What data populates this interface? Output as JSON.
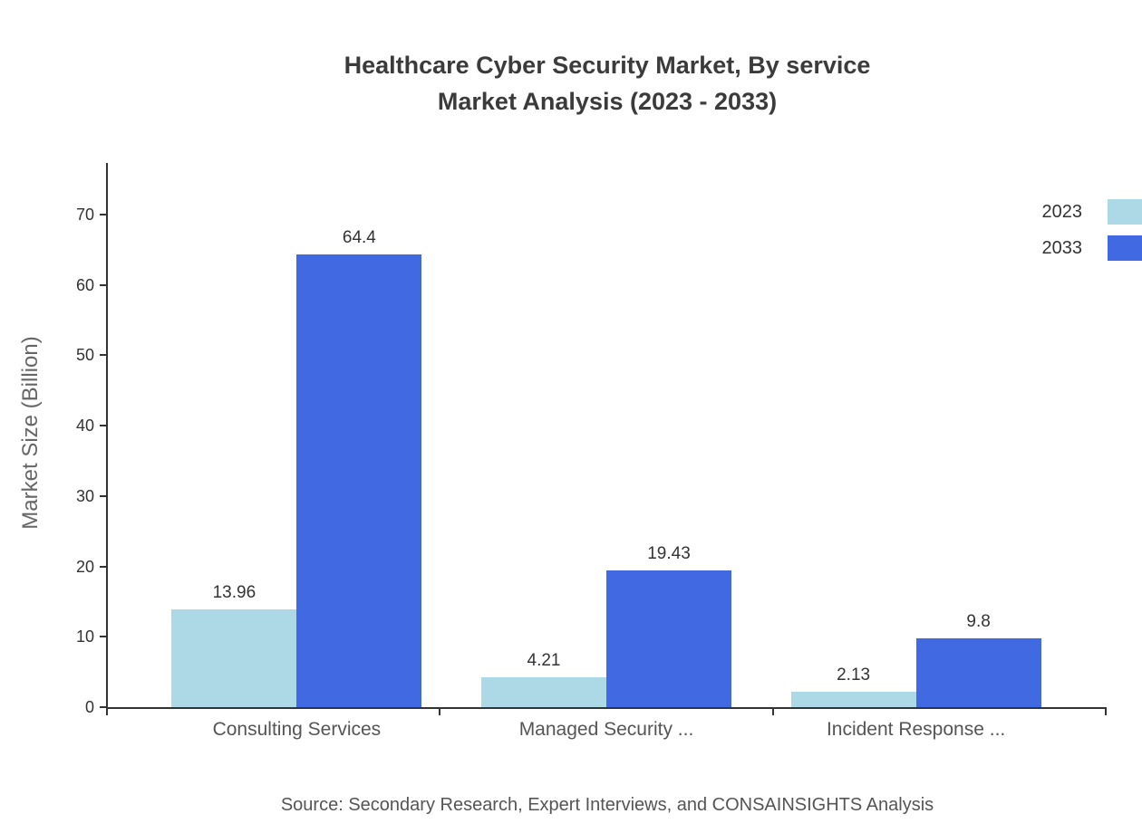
{
  "title": {
    "line1": "Healthcare Cyber Security Market, By service",
    "line2": "Market Analysis (2023 - 2033)"
  },
  "source": "Source: Secondary Research, Expert Interviews, and CONSAINSIGHTS Analysis",
  "chart_data": {
    "type": "bar",
    "title": "Healthcare Cyber Security Market, By service Market Analysis (2023 - 2033)",
    "categories": [
      "Consulting Services",
      "Managed Security ...",
      "Incident Response ..."
    ],
    "series": [
      {
        "name": "2023",
        "color": "#ADD8E6",
        "values": [
          13.96,
          4.21,
          2.13
        ]
      },
      {
        "name": "2033",
        "color": "#4169E1",
        "values": [
          64.4,
          19.43,
          9.8
        ]
      }
    ],
    "xlabel": "",
    "ylabel": "Market Size (Billion)",
    "ylim": [
      0,
      70
    ],
    "yticks": [
      0,
      10,
      20,
      30,
      40,
      50,
      60,
      70
    ],
    "grid": false,
    "legend_position": "top-right",
    "value_labels": true
  }
}
